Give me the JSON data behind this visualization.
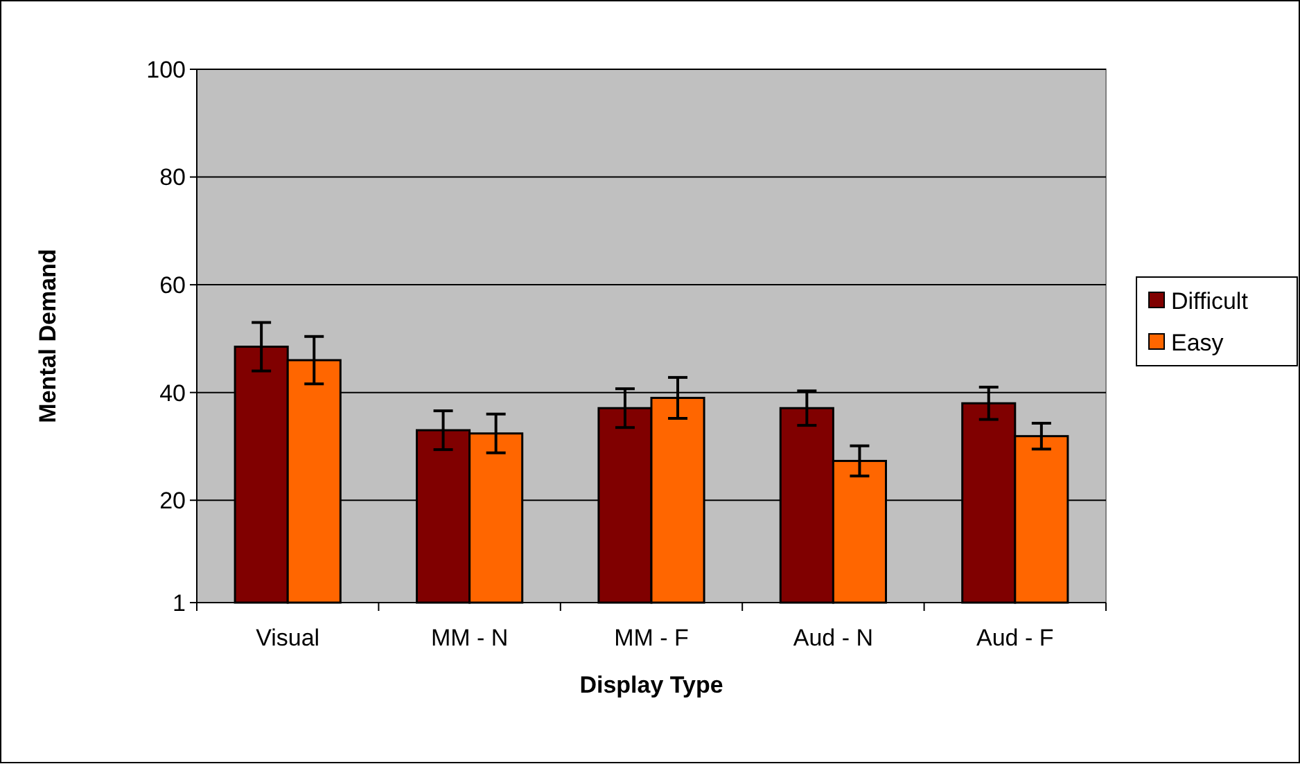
{
  "chart_data": {
    "type": "bar",
    "xlabel": "Display Type",
    "ylabel": "Mental Demand",
    "categories": [
      "Visual",
      "MM - N",
      "MM - F",
      "Aud - N",
      "Aud - F"
    ],
    "series": [
      {
        "name": "Difficult",
        "color": "#800000",
        "values": [
          48.5,
          33,
          37.1,
          37.1,
          38
        ],
        "errors": [
          4.5,
          3.6,
          3.6,
          3.2,
          3
        ]
      },
      {
        "name": "Easy",
        "color": "#ff6600",
        "values": [
          46,
          32.4,
          39,
          27.3,
          31.9
        ],
        "errors": [
          4.4,
          3.6,
          3.8,
          2.8,
          2.4
        ]
      }
    ],
    "ylim": [
      1,
      100
    ],
    "yticks": [
      1,
      20,
      40,
      60,
      80,
      100
    ],
    "grid": "y",
    "legend": "right"
  }
}
